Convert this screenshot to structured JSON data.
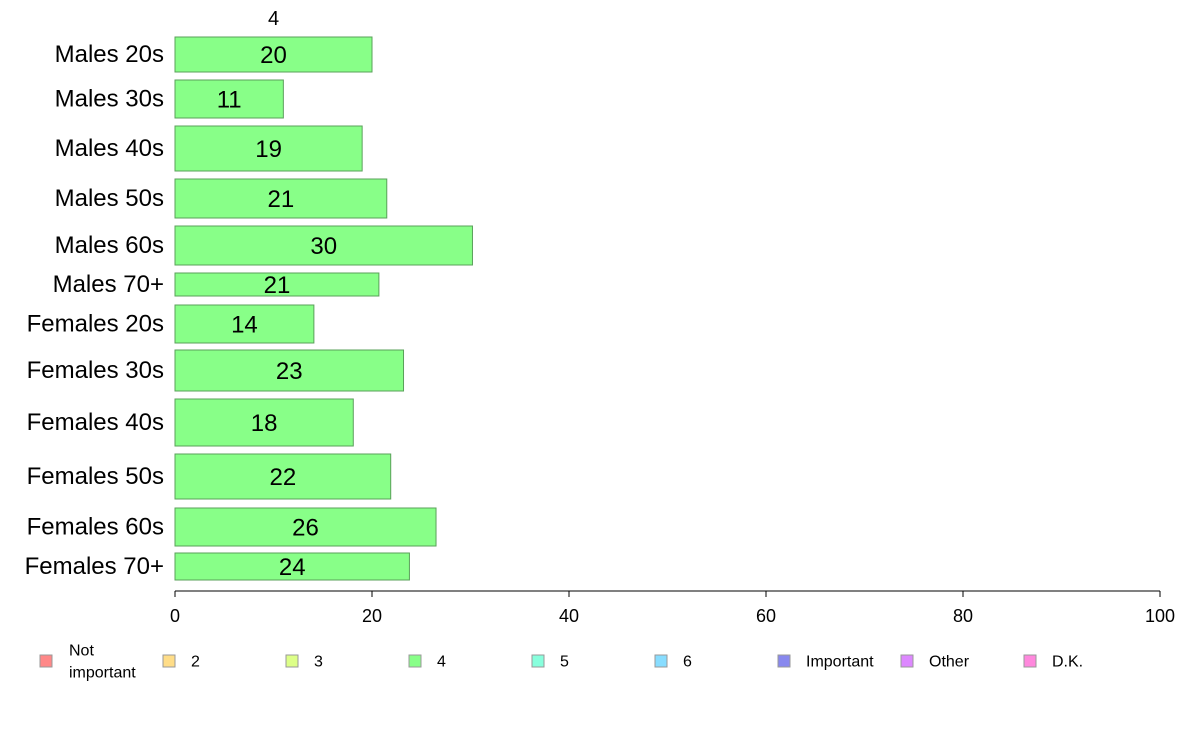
{
  "chart_data": {
    "type": "bar",
    "orientation": "horizontal",
    "stacked": true,
    "series_header": "4",
    "categories": [
      "Males 20s",
      "Males 30s",
      "Males 40s",
      "Males 50s",
      "Males 60s",
      "Males 70+",
      "Females 20s",
      "Females 30s",
      "Females 40s",
      "Females 50s",
      "Females 60s",
      "Females 70+"
    ],
    "series": [
      {
        "name": "4",
        "color": "#88ff88",
        "values": [
          20,
          11,
          19,
          21.5,
          30.2,
          20.7,
          14.1,
          23.2,
          18.1,
          21.9,
          26.5,
          23.8
        ],
        "labels": [
          "20",
          "11",
          "19",
          "21",
          "30",
          "21",
          "14",
          "23",
          "18",
          "22",
          "26",
          "24"
        ]
      }
    ],
    "xlim": [
      0,
      100
    ],
    "xticks": [
      "0",
      "20",
      "40",
      "60",
      "80",
      "100"
    ],
    "grid": false,
    "legend": {
      "position": "bottom",
      "entries": [
        {
          "label_lines": [
            "Not",
            "important"
          ],
          "color": "#ff8888"
        },
        {
          "label_lines": [
            "2"
          ],
          "color": "#ffdd88"
        },
        {
          "label_lines": [
            "3"
          ],
          "color": "#ddff88"
        },
        {
          "label_lines": [
            "4"
          ],
          "color": "#88ff88"
        },
        {
          "label_lines": [
            "5"
          ],
          "color": "#88ffdd"
        },
        {
          "label_lines": [
            "6"
          ],
          "color": "#88ddff"
        },
        {
          "label_lines": [
            "Important"
          ],
          "color": "#8888ee"
        },
        {
          "label_lines": [
            "Other"
          ],
          "color": "#dd88ff"
        },
        {
          "label_lines": [
            "D.K."
          ],
          "color": "#ff88dd"
        }
      ]
    }
  }
}
